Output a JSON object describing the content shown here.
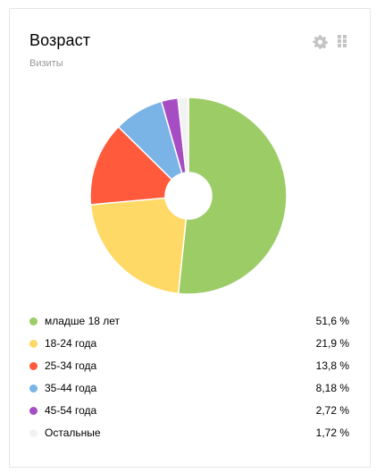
{
  "widget": {
    "title": "Возраст",
    "subtitle": "Визиты",
    "settings_icon": "gear-icon",
    "drag_icon": "drag-handle-icon"
  },
  "chart_data": {
    "type": "pie",
    "donut": true,
    "categories": [
      "младше 18 лет",
      "18-24 года",
      "25-34 года",
      "35-44 года",
      "45-54 года",
      "Остальные"
    ],
    "values": [
      51.6,
      21.9,
      13.8,
      8.18,
      2.72,
      1.72
    ],
    "value_labels": [
      "51,6 %",
      "21,9 %",
      "13,8 %",
      "8,18 %",
      "2,72 %",
      "1,72 %"
    ],
    "colors": [
      "#9ccc65",
      "#ffd966",
      "#ff5a3c",
      "#7ab3e6",
      "#a64dc4",
      "#f2f2f2"
    ],
    "legend_position": "bottom"
  }
}
